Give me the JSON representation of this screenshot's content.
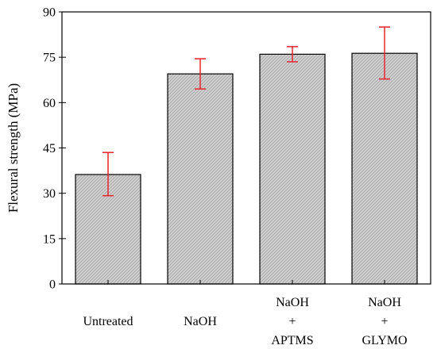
{
  "chart_data": {
    "type": "bar",
    "categories": [
      [
        "Untreated"
      ],
      [
        "NaOH"
      ],
      [
        "NaOH",
        "+",
        "APTMS"
      ],
      [
        "NaOH",
        "+",
        "GLYMO"
      ]
    ],
    "values": [
      36.2,
      69.5,
      76.0,
      76.3
    ],
    "error_low": [
      29.2,
      64.5,
      73.5,
      67.8
    ],
    "error_high": [
      43.5,
      74.5,
      78.5,
      85.0
    ],
    "title": "",
    "xlabel": "",
    "ylabel": "Flexural strength (MPa)",
    "ylim": [
      0,
      90
    ],
    "yticks": [
      "0",
      "15",
      "30",
      "45",
      "60",
      "75",
      "90"
    ],
    "grid": false,
    "colors": {
      "bar_fill": "#d4d4d4",
      "bar_hatch": "#9a9a9a",
      "bar_stroke": "#000000",
      "error_bar": "#e8242c",
      "axis": "#000000"
    }
  }
}
